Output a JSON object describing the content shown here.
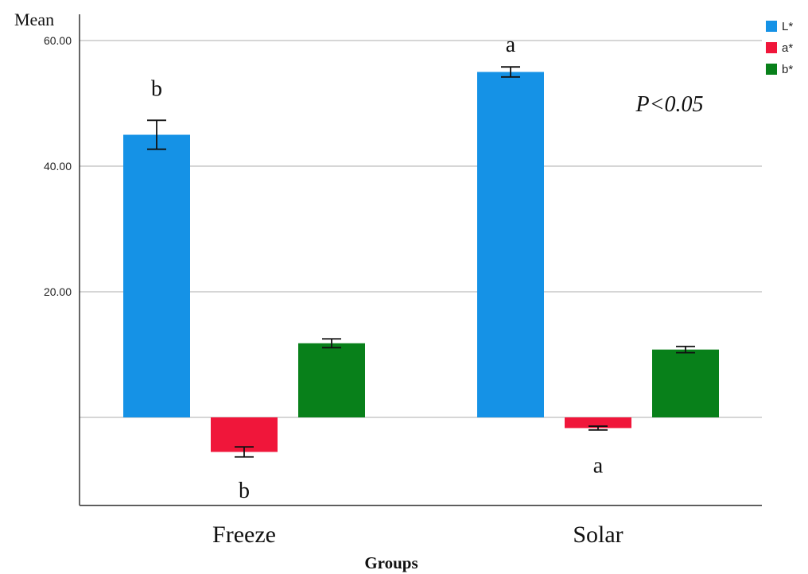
{
  "chart_data": {
    "type": "bar",
    "ylabel": "Mean",
    "xlabel": "Groups",
    "categories": [
      "Freeze",
      "Solar"
    ],
    "ylim": [
      -14,
      62
    ],
    "yticks": [
      {
        "value": 60,
        "label": "60.00"
      },
      {
        "value": 40,
        "label": "40.00"
      },
      {
        "value": 20,
        "label": "20.00"
      },
      {
        "value": 0,
        "label": ""
      }
    ],
    "grid": true,
    "legend_position": "top-right",
    "series": [
      {
        "name": "L*",
        "color": "#1592e6",
        "values": [
          45.0,
          55.0
        ],
        "errors": [
          2.3,
          0.8
        ]
      },
      {
        "name": "a*",
        "color": "#f0163a",
        "values": [
          -5.5,
          -1.7
        ],
        "errors": [
          0.8,
          0.3
        ]
      },
      {
        "name": "b*",
        "color": "#08801a",
        "values": [
          11.8,
          10.8
        ],
        "errors": [
          0.7,
          0.5
        ]
      }
    ],
    "annotations": [
      {
        "text": "b",
        "category": 0,
        "series": 0,
        "value": 52.5
      },
      {
        "text": "b",
        "category": 0,
        "series": 1,
        "value": -11.5
      },
      {
        "text": "a",
        "category": 1,
        "series": 0,
        "value": 59.5
      },
      {
        "text": "a",
        "category": 1,
        "series": 1,
        "value": -7.5
      }
    ],
    "pvalue_text": "P<0.05"
  }
}
